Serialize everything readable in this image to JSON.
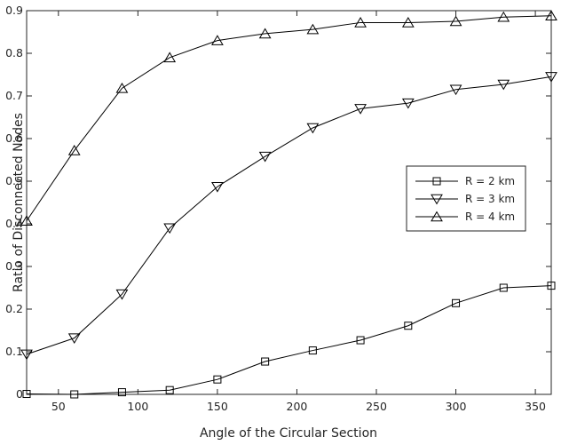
{
  "chart_data": {
    "type": "line",
    "xlabel": "Angle of the Circular Section",
    "ylabel": "Ratio of Disconnected Nodes",
    "xlim": [
      30,
      360
    ],
    "ylim": [
      0,
      0.9
    ],
    "xticks": [
      50,
      100,
      150,
      200,
      250,
      300,
      350
    ],
    "yticks": [
      0,
      0.1,
      0.2,
      0.3,
      0.4,
      0.5,
      0.6,
      0.7,
      0.8,
      0.9
    ],
    "ytick_labels": [
      "0",
      "0.1",
      "0.2",
      "0.3",
      "0.4",
      "0.5",
      "0.6",
      "0.7",
      "0.8",
      "0.9"
    ],
    "grid": false,
    "legend_position": "right",
    "x": [
      30,
      60,
      90,
      120,
      150,
      180,
      210,
      240,
      270,
      300,
      330,
      360
    ],
    "series": [
      {
        "name": "R = 2 km",
        "marker": "square",
        "values": [
          0.001,
          0.0,
          0.005,
          0.01,
          0.035,
          0.077,
          0.103,
          0.127,
          0.161,
          0.214,
          0.25,
          0.255
        ]
      },
      {
        "name": "R = 3 km",
        "marker": "triangle-down",
        "values": [
          0.094,
          0.132,
          0.235,
          0.39,
          0.487,
          0.558,
          0.625,
          0.67,
          0.683,
          0.715,
          0.727,
          0.745
        ]
      },
      {
        "name": "R = 4 km",
        "marker": "triangle-up",
        "values": [
          0.407,
          0.572,
          0.718,
          0.79,
          0.83,
          0.846,
          0.856,
          0.872,
          0.872,
          0.875,
          0.885,
          0.888
        ]
      }
    ],
    "line_color": "#000000"
  }
}
